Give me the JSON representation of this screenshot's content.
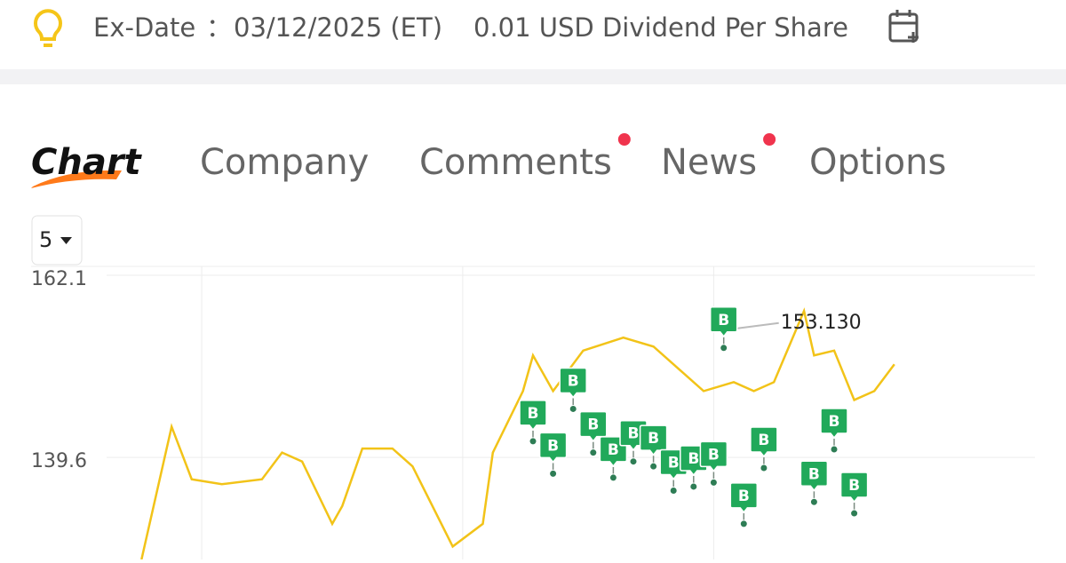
{
  "banner": {
    "label": "Ex-Date",
    "separator": "：",
    "date": "03/12/2025 (ET)",
    "dividend": "0.01 USD Dividend Per Share"
  },
  "tabs": [
    {
      "label": "Chart",
      "active": true,
      "badge": false
    },
    {
      "label": "Company",
      "active": false,
      "badge": false
    },
    {
      "label": "Comments",
      "active": false,
      "badge": true
    },
    {
      "label": "News",
      "active": false,
      "badge": true
    },
    {
      "label": "Options",
      "active": false,
      "badge": false
    }
  ],
  "period": "5",
  "chart_data": {
    "type": "line",
    "x": [
      11,
      14,
      16,
      19,
      23,
      25,
      27,
      30,
      31,
      33,
      36,
      38,
      42,
      45,
      46,
      49,
      50,
      52,
      55,
      59,
      62,
      65,
      67,
      70,
      72,
      74,
      77,
      78,
      80,
      82,
      84,
      86
    ],
    "series": [
      {
        "color": "#f2c318",
        "values": [
          127.0,
          143.4,
          136.9,
          136.3,
          136.9,
          140.2,
          139.1,
          131.4,
          133.6,
          140.7,
          140.7,
          138.5,
          128.6,
          131.4,
          140.2,
          147.8,
          152.2,
          147.8,
          152.8,
          154.4,
          153.3,
          150.0,
          147.8,
          148.9,
          147.8,
          148.9,
          157.7,
          152.2,
          152.8,
          146.7,
          147.8,
          151.1
        ]
      }
    ],
    "xlim": [
      0,
      100
    ],
    "xticks": [
      17,
      43,
      68
    ],
    "ylim": [
      127.0,
      163.2
    ],
    "yticks": [
      139.6,
      162.1
    ],
    "grid": true,
    "markers": {
      "label": "B",
      "color": "#21a95a",
      "x": [
        50,
        52,
        54,
        56,
        58,
        60,
        62,
        64,
        66,
        68,
        69,
        71,
        73,
        78,
        80,
        82
      ],
      "values": [
        141.6,
        137.6,
        145.6,
        140.2,
        137.1,
        139.1,
        138.5,
        135.5,
        136.0,
        136.5,
        153.13,
        131.4,
        138.3,
        134.1,
        140.6,
        132.7
      ]
    },
    "annotation": {
      "value": 153.13,
      "label": "153.130"
    }
  }
}
